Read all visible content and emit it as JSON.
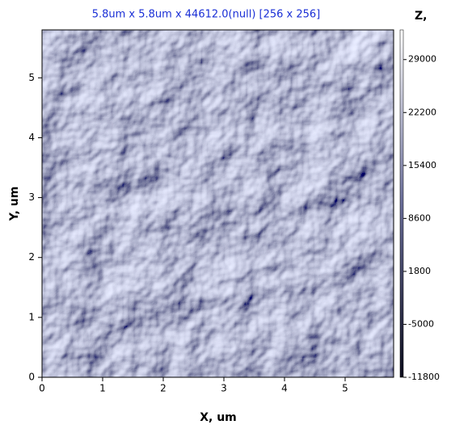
{
  "chart_data": {
    "type": "image",
    "title": "5.8um x 5.8um x 44612.0(null) [256 x 256]",
    "xlabel": "X, um",
    "ylabel": "Y, um",
    "xlim": [
      0,
      5.8
    ],
    "ylim": [
      0,
      5.8
    ],
    "xticks": [
      0,
      1,
      2,
      3,
      4,
      5
    ],
    "yticks": [
      0,
      1,
      2,
      3,
      4,
      5
    ],
    "colorbar": {
      "label": "Z,",
      "lim": [
        -11800,
        32812
      ],
      "ticks": [
        -11800,
        -5000,
        1800,
        8600,
        15400,
        22200,
        29000
      ]
    }
  }
}
